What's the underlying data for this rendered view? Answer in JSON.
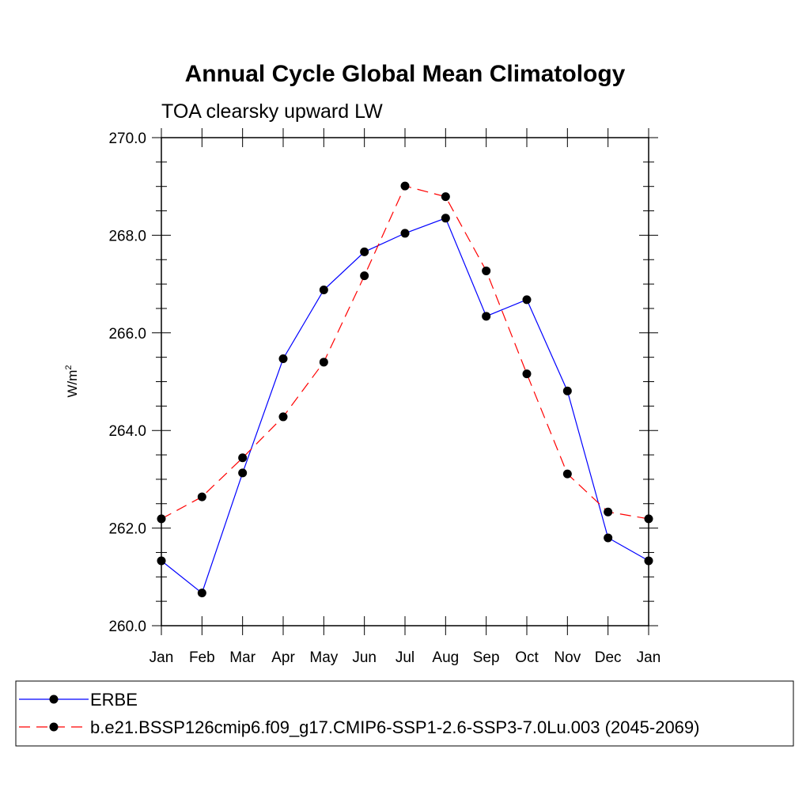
{
  "chart_data": {
    "type": "line",
    "title": "Annual Cycle Global Mean Climatology",
    "subtitle": "TOA clearsky upward LW",
    "ylabel": "W/m",
    "ylabel_sup": "2",
    "ylim": [
      260.0,
      270.0
    ],
    "yticks": [
      "260.0",
      "262.0",
      "264.0",
      "266.0",
      "268.0",
      "270.0"
    ],
    "categories": [
      "Jan",
      "Feb",
      "Mar",
      "Apr",
      "May",
      "Jun",
      "Jul",
      "Aug",
      "Sep",
      "Oct",
      "Nov",
      "Dec",
      "Jan"
    ],
    "legend_position": "bottom",
    "series": [
      {
        "name": "ERBE",
        "color": "#0000ff",
        "dash": "solid",
        "values": [
          261.33,
          260.67,
          263.13,
          265.47,
          266.88,
          267.66,
          268.04,
          268.35,
          266.34,
          266.68,
          264.81,
          261.8,
          261.33
        ]
      },
      {
        "name": "b.e21.BSSP126cmip6.f09_g17.CMIP6-SSP1-2.6-SSP3-7.0Lu.003 (2045-2069)",
        "color": "#ff0000",
        "dash": "dashed",
        "values": [
          262.19,
          262.64,
          263.44,
          264.28,
          265.4,
          267.17,
          269.01,
          268.79,
          267.27,
          265.16,
          263.11,
          262.33,
          262.19
        ]
      }
    ]
  }
}
